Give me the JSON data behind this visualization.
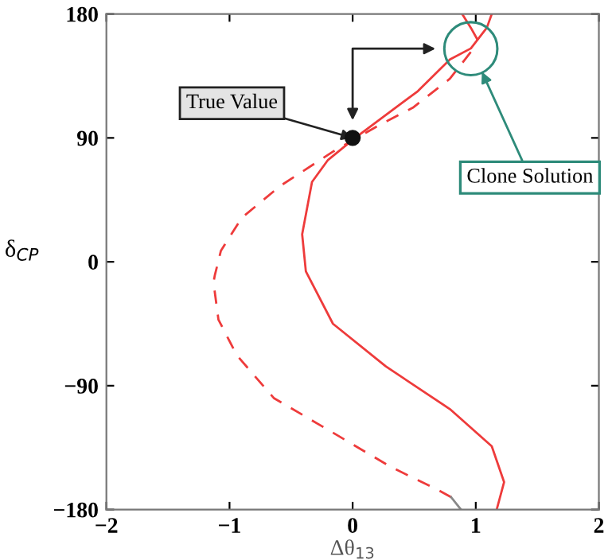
{
  "chart_data": {
    "type": "line",
    "xlabel": "Δθ$_{13}$",
    "ylabel": "δ$_{CP}$",
    "xlim": [
      -2,
      2
    ],
    "ylim": [
      -180,
      180
    ],
    "xticks": [
      {
        "value": -2,
        "label": "−2"
      },
      {
        "value": -1,
        "label": "−1"
      },
      0,
      1,
      2
    ],
    "yticks": [
      {
        "value": -180,
        "label": "−180"
      },
      {
        "value": -90,
        "label": "−90"
      },
      0,
      90,
      180
    ],
    "grid": false,
    "legend": false,
    "series": [
      {
        "color": "#ee3b3b",
        "line_style": "solid",
        "x": [
          1.17,
          1.23,
          1.13,
          0.79,
          0.27,
          -0.16,
          -0.38,
          -0.41,
          -0.33,
          -0.2,
          0.02,
          0.53,
          0.79,
          0.96,
          1.09,
          1.13
        ],
        "values": [
          -180,
          -160,
          -134,
          -107,
          -76,
          -45,
          -7,
          20,
          58,
          74,
          90,
          124,
          147,
          155,
          170,
          180
        ]
      },
      {
        "color": "#ee3b3b",
        "line_style": "dashed",
        "x": [
          0.8,
          0.7,
          0.31,
          -0.2,
          -0.64,
          -0.94,
          -1.09,
          -1.13,
          -1.12,
          -1.07,
          -0.9,
          -0.59,
          -0.16,
          0.23,
          0.49,
          0.79,
          1.0
        ],
        "values": [
          -171,
          -166,
          -149,
          -122,
          -99,
          -68,
          -42,
          -15,
          -10,
          8,
          32,
          55,
          80,
          100,
          112,
          133,
          157
        ]
      },
      {
        "color": "#ee3b3b",
        "line_style": "solid",
        "x": [
          0.89,
          0.96,
          1.01
        ],
        "values": [
          180,
          170,
          162
        ]
      },
      {
        "color": "#888888",
        "line_style": "solid",
        "x": [
          0.8,
          0.88
        ],
        "values": [
          -171,
          -180
        ]
      },
      {
        "type": "scatter",
        "color": "#111111",
        "marker": "circle",
        "x": [
          0
        ],
        "values": [
          90
        ]
      }
    ],
    "annotations": [
      {
        "text": "True Value",
        "x": 0,
        "y": 90
      },
      {
        "text": "Clone Solution",
        "x": 1.05,
        "y": 138
      }
    ]
  }
}
